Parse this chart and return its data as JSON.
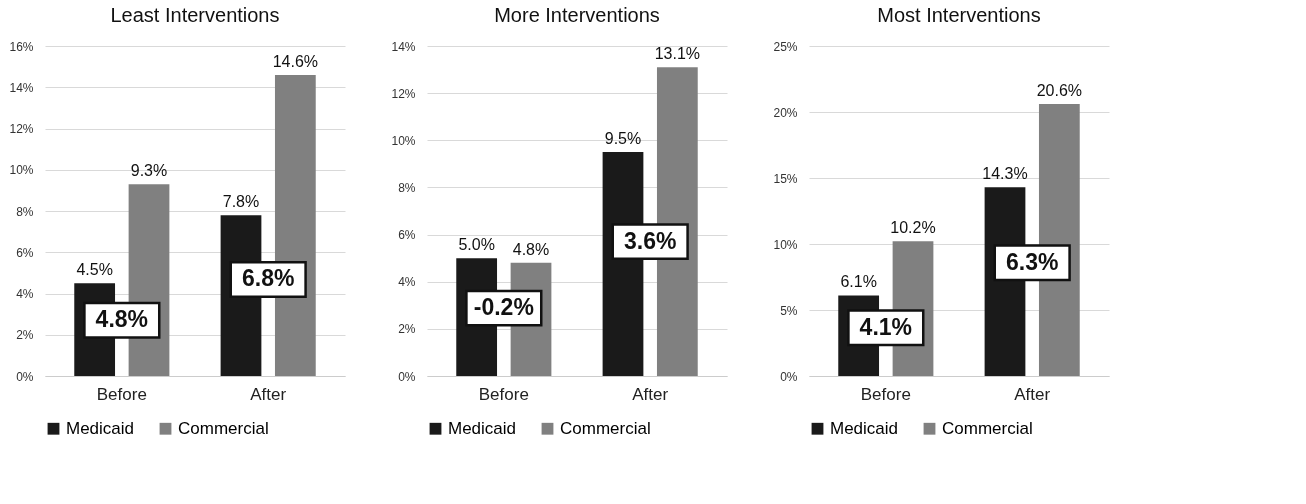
{
  "chart_data": [
    {
      "type": "bar",
      "title": "Least Interventions",
      "categories": [
        "Before",
        "After"
      ],
      "series": [
        {
          "name": "Medicaid",
          "color": "#1a1a1a",
          "values": [
            4.5,
            7.8
          ],
          "value_labels": [
            "4.5%",
            "7.8%"
          ]
        },
        {
          "name": "Commercial",
          "color": "#808080",
          "values": [
            9.3,
            14.6
          ],
          "value_labels": [
            "9.3%",
            "14.6%"
          ]
        }
      ],
      "ylim": [
        0,
        16
      ],
      "yticks": [
        {
          "value": 0,
          "label": "0%"
        },
        {
          "value": 2,
          "label": "2%"
        },
        {
          "value": 4,
          "label": "4%"
        },
        {
          "value": 6,
          "label": "6%"
        },
        {
          "value": 8,
          "label": "8%"
        },
        {
          "value": 10,
          "label": "10%"
        },
        {
          "value": 12,
          "label": "12%"
        },
        {
          "value": 14,
          "label": "14%"
        },
        {
          "value": 16,
          "label": "16%"
        }
      ],
      "grid": "y",
      "legend": "bottom",
      "annotations": [
        "4.8%",
        "6.8%"
      ]
    },
    {
      "type": "bar",
      "title": "More Interventions",
      "categories": [
        "Before",
        "After"
      ],
      "series": [
        {
          "name": "Medicaid",
          "color": "#1a1a1a",
          "values": [
            5.0,
            9.5
          ],
          "value_labels": [
            "5.0%",
            "9.5%"
          ]
        },
        {
          "name": "Commercial",
          "color": "#808080",
          "values": [
            4.8,
            13.1
          ],
          "value_labels": [
            "4.8%",
            "13.1%"
          ]
        }
      ],
      "ylim": [
        0,
        14
      ],
      "yticks": [
        {
          "value": 0,
          "label": "0%"
        },
        {
          "value": 2,
          "label": "2%"
        },
        {
          "value": 4,
          "label": "4%"
        },
        {
          "value": 6,
          "label": "6%"
        },
        {
          "value": 8,
          "label": "8%"
        },
        {
          "value": 10,
          "label": "10%"
        },
        {
          "value": 12,
          "label": "12%"
        },
        {
          "value": 14,
          "label": "14%"
        }
      ],
      "grid": "y",
      "legend": "bottom",
      "annotations": [
        "-0.2%",
        "3.6%"
      ]
    },
    {
      "type": "bar",
      "title": "Most Interventions",
      "categories": [
        "Before",
        "After"
      ],
      "series": [
        {
          "name": "Medicaid",
          "color": "#1a1a1a",
          "values": [
            6.1,
            14.3
          ],
          "value_labels": [
            "6.1%",
            "14.3%"
          ]
        },
        {
          "name": "Commercial",
          "color": "#808080",
          "values": [
            10.2,
            20.6
          ],
          "value_labels": [
            "10.2%",
            "20.6%"
          ]
        }
      ],
      "ylim": [
        0,
        25
      ],
      "yticks": [
        {
          "value": 0,
          "label": "0%"
        },
        {
          "value": 5,
          "label": "5%"
        },
        {
          "value": 10,
          "label": "10%"
        },
        {
          "value": 15,
          "label": "15%"
        },
        {
          "value": 20,
          "label": "20%"
        },
        {
          "value": 25,
          "label": "25%"
        }
      ],
      "grid": "y",
      "legend": "bottom",
      "annotations": [
        "4.1%",
        "6.3%"
      ]
    }
  ]
}
